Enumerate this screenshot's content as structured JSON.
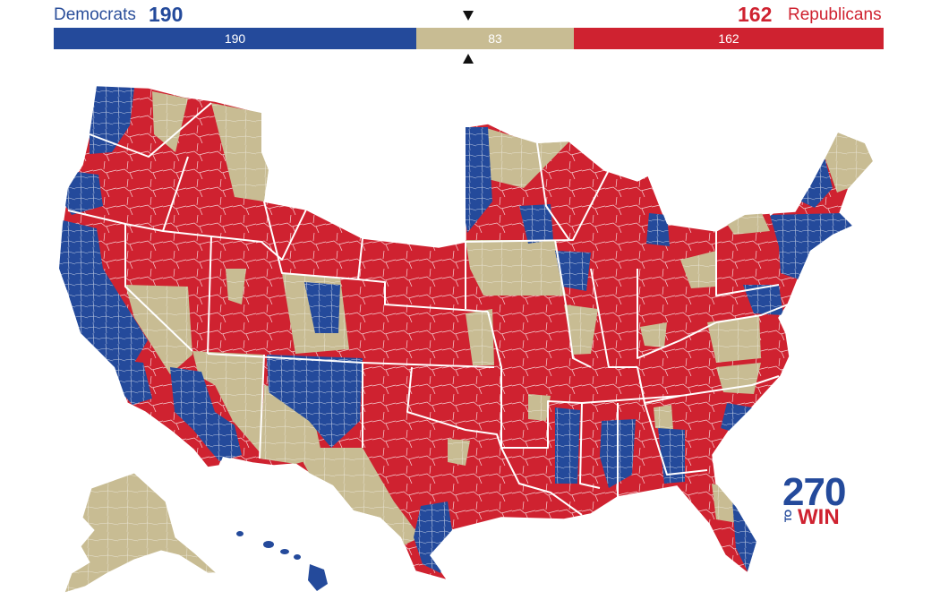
{
  "header": {
    "dem_label": "Democrats",
    "dem_count": "190",
    "rep_count": "162",
    "rep_label": "Republicans"
  },
  "bar": {
    "dem_value": "190",
    "tossup_value": "83",
    "rep_value": "162"
  },
  "logo": {
    "number": "270",
    "to": "TO",
    "win": "WIN"
  },
  "colors": {
    "democrat": "#244a9b",
    "republican": "#cf2230",
    "tossup": "#c8bc93"
  }
}
